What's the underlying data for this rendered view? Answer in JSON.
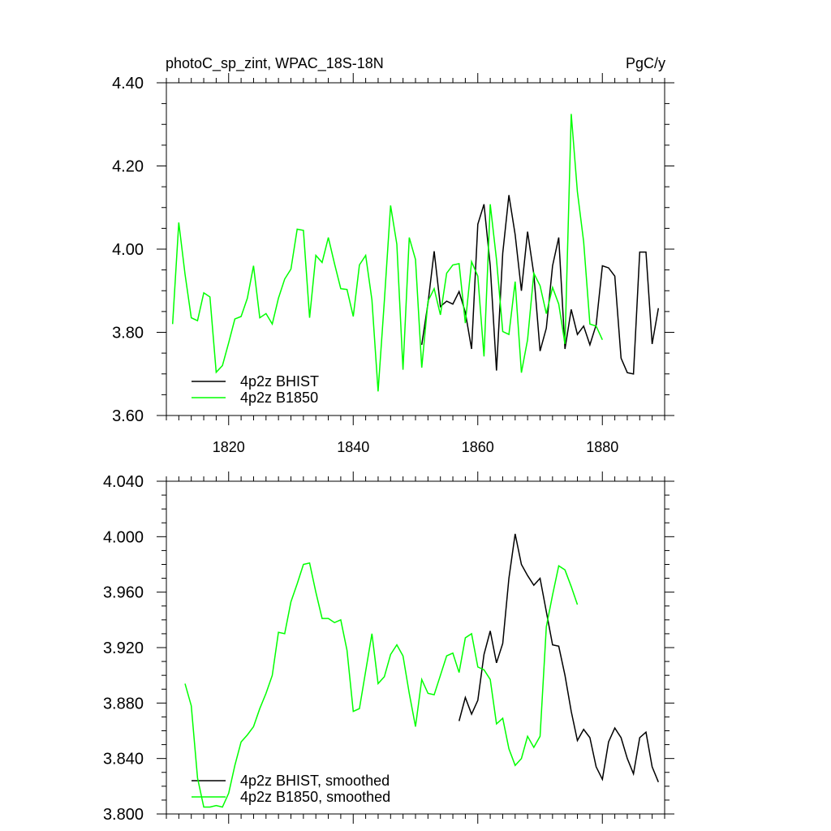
{
  "header": {
    "left": "photoC_sp_zint, WPAC_18S-18N",
    "right": "PgC/y"
  },
  "chart_data": [
    {
      "type": "line",
      "title": "photoC_sp_zint, WPAC_18S-18N",
      "units": "PgC/y",
      "xlim": [
        1810,
        1890
      ],
      "ylim": [
        3.6,
        4.4
      ],
      "xticks": [
        1820,
        1840,
        1860,
        1880
      ],
      "xtick_labels": [
        "1820",
        "1840",
        "1860",
        "1880"
      ],
      "yticks": [
        3.6,
        3.8,
        4.0,
        4.2,
        4.4
      ],
      "ytick_labels": [
        "3.60",
        "3.80",
        "4.00",
        "4.20",
        "4.40"
      ],
      "legend_position": "bottom-left",
      "grid": false,
      "series": [
        {
          "name": "4p2z BHIST",
          "color": "#000000",
          "x": [
            1851,
            1852,
            1853,
            1854,
            1855,
            1856,
            1857,
            1858,
            1859,
            1860,
            1861,
            1862,
            1863,
            1864,
            1865,
            1866,
            1867,
            1868,
            1869,
            1870,
            1871,
            1872,
            1873,
            1874,
            1875,
            1876,
            1877,
            1878,
            1879,
            1880,
            1881,
            1882,
            1883,
            1884,
            1885,
            1886,
            1887,
            1888,
            1889
          ],
          "y": [
            3.77,
            3.87,
            3.995,
            3.862,
            3.875,
            3.868,
            3.898,
            3.848,
            3.76,
            4.06,
            4.108,
            3.96,
            3.708,
            3.99,
            4.13,
            4.035,
            3.9,
            4.042,
            3.94,
            3.755,
            3.81,
            3.96,
            4.028,
            3.76,
            3.855,
            3.795,
            3.815,
            3.77,
            3.818,
            3.96,
            3.955,
            3.935,
            3.738,
            3.703,
            3.7,
            3.993,
            3.993,
            3.772,
            3.858
          ]
        },
        {
          "name": "4p2z B1850",
          "color": "#00ff00",
          "x": [
            1811,
            1812,
            1813,
            1814,
            1815,
            1816,
            1817,
            1818,
            1819,
            1820,
            1821,
            1822,
            1823,
            1824,
            1825,
            1826,
            1827,
            1828,
            1829,
            1830,
            1831,
            1832,
            1833,
            1834,
            1835,
            1836,
            1837,
            1838,
            1839,
            1840,
            1841,
            1842,
            1843,
            1844,
            1845,
            1846,
            1847,
            1848,
            1849,
            1850,
            1851,
            1852,
            1853,
            1854,
            1855,
            1856,
            1857,
            1858,
            1859,
            1860,
            1861,
            1862,
            1863,
            1864,
            1865,
            1866,
            1867,
            1868,
            1869,
            1870,
            1871,
            1872,
            1873,
            1874,
            1875,
            1876,
            1877,
            1878,
            1879,
            1880
          ],
          "y": [
            3.82,
            4.064,
            3.94,
            3.835,
            3.828,
            3.895,
            3.885,
            3.704,
            3.72,
            3.775,
            3.832,
            3.838,
            3.882,
            3.96,
            3.835,
            3.845,
            3.82,
            3.882,
            3.928,
            3.952,
            4.048,
            4.045,
            3.835,
            3.985,
            3.968,
            4.028,
            3.965,
            3.905,
            3.903,
            3.838,
            3.962,
            3.985,
            3.878,
            3.658,
            3.875,
            4.105,
            4.012,
            3.71,
            4.028,
            3.975,
            3.715,
            3.875,
            3.905,
            3.842,
            3.942,
            3.962,
            3.965,
            3.822,
            3.97,
            3.935,
            3.742,
            4.108,
            3.975,
            3.802,
            3.795,
            3.922,
            3.703,
            3.782,
            3.942,
            3.912,
            3.845,
            3.908,
            3.868,
            3.772,
            4.325,
            4.138,
            4.018,
            3.82,
            3.815,
            3.782
          ]
        }
      ]
    },
    {
      "type": "line",
      "xlim": [
        1810,
        1890
      ],
      "ylim": [
        3.8,
        4.04
      ],
      "xticks": [
        1820,
        1840,
        1860,
        1880
      ],
      "yticks": [
        3.8,
        3.84,
        3.88,
        3.92,
        3.96,
        4.0,
        4.04
      ],
      "ytick_labels": [
        "3.800",
        "3.840",
        "3.880",
        "3.920",
        "3.960",
        "4.000",
        "4.040"
      ],
      "legend_position": "bottom-left",
      "grid": false,
      "series": [
        {
          "name": "4p2z BHIST, smoothed",
          "color": "#000000",
          "x": [
            1857,
            1858,
            1859,
            1860,
            1861,
            1862,
            1863,
            1864,
            1865,
            1866,
            1867,
            1868,
            1869,
            1870,
            1871,
            1872,
            1873,
            1874,
            1875,
            1876,
            1877,
            1878,
            1879,
            1880,
            1881,
            1882,
            1883,
            1884,
            1885,
            1886,
            1887,
            1888,
            1889
          ],
          "y": [
            3.867,
            3.884,
            3.872,
            3.882,
            3.915,
            3.932,
            3.909,
            3.923,
            3.97,
            4.002,
            3.98,
            3.972,
            3.965,
            3.97,
            3.946,
            3.922,
            3.921,
            3.9,
            3.874,
            3.853,
            3.861,
            3.855,
            3.834,
            3.825,
            3.852,
            3.862,
            3.855,
            3.84,
            3.829,
            3.855,
            3.859,
            3.834,
            3.823
          ]
        },
        {
          "name": "4p2z B1850, smoothed",
          "color": "#00ff00",
          "x": [
            1813,
            1814,
            1815,
            1816,
            1817,
            1818,
            1819,
            1820,
            1821,
            1822,
            1823,
            1824,
            1825,
            1826,
            1827,
            1828,
            1829,
            1830,
            1831,
            1832,
            1833,
            1834,
            1835,
            1836,
            1837,
            1838,
            1839,
            1840,
            1841,
            1842,
            1843,
            1844,
            1845,
            1846,
            1847,
            1848,
            1849,
            1850,
            1851,
            1852,
            1853,
            1854,
            1855,
            1856,
            1857,
            1858,
            1859,
            1860,
            1861,
            1862,
            1863,
            1864,
            1865,
            1866,
            1867,
            1868,
            1869,
            1870,
            1871,
            1872,
            1873,
            1874,
            1875,
            1876
          ],
          "y": [
            3.894,
            3.878,
            3.826,
            3.805,
            3.805,
            3.806,
            3.805,
            3.815,
            3.835,
            3.852,
            3.857,
            3.863,
            3.876,
            3.887,
            3.9,
            3.931,
            3.93,
            3.953,
            3.966,
            3.98,
            3.981,
            3.96,
            3.941,
            3.941,
            3.938,
            3.94,
            3.918,
            3.874,
            3.876,
            3.903,
            3.93,
            3.894,
            3.899,
            3.915,
            3.922,
            3.914,
            3.887,
            3.863,
            3.897,
            3.887,
            3.886,
            3.9,
            3.914,
            3.916,
            3.902,
            3.927,
            3.93,
            3.906,
            3.904,
            3.897,
            3.865,
            3.869,
            3.847,
            3.835,
            3.84,
            3.856,
            3.848,
            3.856,
            3.935,
            3.958,
            3.979,
            3.976,
            3.964,
            3.951
          ]
        }
      ]
    }
  ]
}
